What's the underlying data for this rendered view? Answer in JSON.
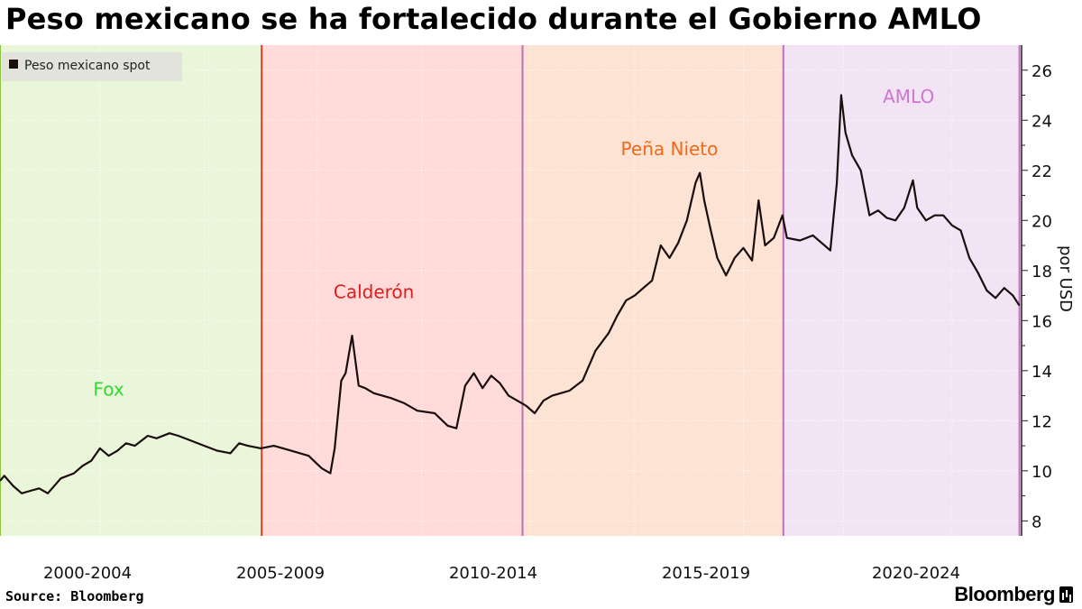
{
  "title": "Peso mexicano se ha fortalecido durante el Gobierno AMLO",
  "source": "Source: Bloomberg",
  "brand": "Bloomberg",
  "chart_data": {
    "type": "line",
    "legend": {
      "label": "Peso mexicano spot",
      "placement": "top-left"
    },
    "ylabel": "por USD",
    "ylim": [
      7.4,
      27.0
    ],
    "yticks": [
      8,
      10,
      12,
      14,
      16,
      18,
      20,
      22,
      24,
      26
    ],
    "xlim": [
      2000.9,
      2024.4
    ],
    "period_labels": [
      "2000-2004",
      "2005-2009",
      "2010-2014",
      "2015-2019",
      "2020-2024"
    ],
    "grid": true,
    "administrations": [
      {
        "name": "Fox",
        "start": 2000.9,
        "end": 2006.92,
        "fill": "#eaf6da",
        "line": "#8cc63f",
        "label_color": "#33d633",
        "label_y": 13.0,
        "label_x": 2003.4
      },
      {
        "name": "Calderón",
        "start": 2006.92,
        "end": 2012.92,
        "fill": "#ffdcda",
        "line": "#e03a1e",
        "label_color": "#e01c1c",
        "label_y": 16.9,
        "label_x": 2009.5
      },
      {
        "name": "Peña Nieto",
        "start": 2012.92,
        "end": 2018.92,
        "fill": "#fde3d4",
        "line": "#c070b0",
        "label_color": "#f2691a",
        "label_y": 22.6,
        "label_x": 2016.3
      },
      {
        "name": "AMLO",
        "start": 2018.92,
        "end": 2024.4,
        "fill": "#f3e4f5",
        "line": "#c070c0",
        "label_color": "#cc77cc",
        "label_y": 24.7,
        "label_x": 2021.8
      }
    ],
    "series": [
      {
        "name": "Peso mexicano spot",
        "color": "#1a0d0d",
        "x": [
          2000.9,
          2001.0,
          2001.2,
          2001.4,
          2001.6,
          2001.8,
          2002.0,
          2002.3,
          2002.6,
          2002.8,
          2003.0,
          2003.2,
          2003.4,
          2003.6,
          2003.8,
          2004.0,
          2004.3,
          2004.5,
          2004.8,
          2005.0,
          2005.3,
          2005.6,
          2005.9,
          2006.2,
          2006.4,
          2006.6,
          2006.9,
          2007.2,
          2007.6,
          2008.0,
          2008.3,
          2008.5,
          2008.6,
          2008.75,
          2008.85,
          2009.0,
          2009.15,
          2009.3,
          2009.5,
          2009.7,
          2009.9,
          2010.2,
          2010.5,
          2010.9,
          2011.2,
          2011.4,
          2011.6,
          2011.8,
          2012.0,
          2012.2,
          2012.4,
          2012.6,
          2012.8,
          2013.0,
          2013.2,
          2013.4,
          2013.6,
          2013.8,
          2014.0,
          2014.3,
          2014.6,
          2014.9,
          2015.1,
          2015.3,
          2015.5,
          2015.7,
          2015.9,
          2016.1,
          2016.3,
          2016.5,
          2016.7,
          2016.9,
          2017.0,
          2017.1,
          2017.25,
          2017.4,
          2017.6,
          2017.8,
          2018.0,
          2018.2,
          2018.35,
          2018.5,
          2018.7,
          2018.9,
          2019.0,
          2019.3,
          2019.6,
          2020.0,
          2020.15,
          2020.25,
          2020.35,
          2020.5,
          2020.7,
          2020.9,
          2021.1,
          2021.3,
          2021.5,
          2021.7,
          2021.9,
          2022.0,
          2022.2,
          2022.4,
          2022.6,
          2022.8,
          2023.0,
          2023.2,
          2023.4,
          2023.6,
          2023.8,
          2024.0,
          2024.2,
          2024.35
        ],
        "values": [
          9.6,
          9.8,
          9.4,
          9.1,
          9.2,
          9.3,
          9.1,
          9.7,
          9.9,
          10.2,
          10.4,
          10.9,
          10.6,
          10.8,
          11.1,
          11.0,
          11.4,
          11.3,
          11.5,
          11.4,
          11.2,
          11.0,
          10.8,
          10.7,
          11.1,
          11.0,
          10.9,
          11.0,
          10.8,
          10.6,
          10.1,
          9.9,
          10.9,
          13.6,
          13.9,
          15.4,
          13.4,
          13.3,
          13.1,
          13.0,
          12.9,
          12.7,
          12.4,
          12.3,
          11.8,
          11.7,
          13.4,
          13.9,
          13.3,
          13.8,
          13.5,
          13.0,
          12.8,
          12.6,
          12.3,
          12.8,
          13.0,
          13.1,
          13.2,
          13.6,
          14.8,
          15.5,
          16.2,
          16.8,
          17.0,
          17.3,
          17.6,
          19.0,
          18.5,
          19.1,
          20.0,
          21.5,
          21.9,
          20.8,
          19.6,
          18.5,
          17.8,
          18.5,
          18.9,
          18.4,
          20.8,
          19.0,
          19.3,
          20.2,
          19.3,
          19.2,
          19.4,
          18.8,
          21.5,
          25.0,
          23.5,
          22.6,
          22.0,
          20.2,
          20.4,
          20.1,
          20.0,
          20.5,
          21.6,
          20.5,
          20.0,
          20.2,
          20.2,
          19.8,
          19.6,
          18.5,
          17.9,
          17.2,
          16.9,
          17.3,
          17.0,
          16.6
        ]
      }
    ]
  }
}
